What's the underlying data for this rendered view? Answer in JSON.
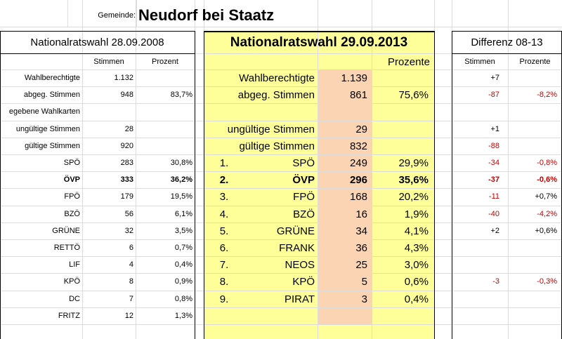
{
  "header": {
    "gemeinde_label": "Gemeinde:",
    "gemeinde_name": "Neudorf bei Staatz"
  },
  "left": {
    "title": "Nationalratswahl 28.09.2008",
    "col_stimmen": "Stimmen",
    "col_prozent": "Prozent",
    "rows": [
      {
        "label": "Wahlberechtigte",
        "stimmen": "1.132",
        "prozent": ""
      },
      {
        "label": "abgeg. Stimmen",
        "stimmen": "948",
        "prozent": "83,7%"
      },
      {
        "label": "egebene Wahlkarten",
        "stimmen": "",
        "prozent": ""
      },
      {
        "label": "ungültige Stimmen",
        "stimmen": "28",
        "prozent": ""
      },
      {
        "label": "gültige Stimmen",
        "stimmen": "920",
        "prozent": ""
      },
      {
        "label": "SPÖ",
        "stimmen": "283",
        "prozent": "30,8%"
      },
      {
        "label": "ÖVP",
        "stimmen": "333",
        "prozent": "36,2%",
        "bold": true
      },
      {
        "label": "FPÖ",
        "stimmen": "179",
        "prozent": "19,5%"
      },
      {
        "label": "BZÖ",
        "stimmen": "56",
        "prozent": "6,1%"
      },
      {
        "label": "GRÜNE",
        "stimmen": "32",
        "prozent": "3,5%"
      },
      {
        "label": "RETTÖ",
        "stimmen": "6",
        "prozent": "0,7%"
      },
      {
        "label": "LIF",
        "stimmen": "4",
        "prozent": "0,4%"
      },
      {
        "label": "KPÖ",
        "stimmen": "8",
        "prozent": "0,9%"
      },
      {
        "label": "DC",
        "stimmen": "7",
        "prozent": "0,8%"
      },
      {
        "label": "FRITZ",
        "stimmen": "12",
        "prozent": "1,3%"
      }
    ]
  },
  "middle": {
    "title": "Nationalratswahl 29.09.2013",
    "col_prozente": "Prozente",
    "rows": [
      {
        "nr": "",
        "label": "Wahlberechtigte",
        "stimmen": "1.139",
        "prozent": ""
      },
      {
        "nr": "",
        "label": "abgeg. Stimmen",
        "stimmen": "861",
        "prozent": "75,6%"
      },
      {
        "nr": "",
        "label": "",
        "stimmen": "",
        "prozent": ""
      },
      {
        "nr": "",
        "label": "ungültige Stimmen",
        "stimmen": "29",
        "prozent": ""
      },
      {
        "nr": "",
        "label": "gültige Stimmen",
        "stimmen": "832",
        "prozent": ""
      },
      {
        "nr": "1.",
        "label": "SPÖ",
        "stimmen": "249",
        "prozent": "29,9%"
      },
      {
        "nr": "2.",
        "label": "ÖVP",
        "stimmen": "296",
        "prozent": "35,6%",
        "bold": true
      },
      {
        "nr": "3.",
        "label": "FPÖ",
        "stimmen": "168",
        "prozent": "20,2%"
      },
      {
        "nr": "4.",
        "label": "BZÖ",
        "stimmen": "16",
        "prozent": "1,9%"
      },
      {
        "nr": "5.",
        "label": "GRÜNE",
        "stimmen": "34",
        "prozent": "4,1%"
      },
      {
        "nr": "6.",
        "label": "FRANK",
        "stimmen": "36",
        "prozent": "4,3%"
      },
      {
        "nr": "7.",
        "label": "NEOS",
        "stimmen": "25",
        "prozent": "3,0%"
      },
      {
        "nr": "8.",
        "label": "KPÖ",
        "stimmen": "5",
        "prozent": "0,6%"
      },
      {
        "nr": "9.",
        "label": "PIRAT",
        "stimmen": "3",
        "prozent": "0,4%"
      },
      {
        "nr": "",
        "label": "",
        "stimmen": "",
        "prozent": ""
      }
    ]
  },
  "right": {
    "title": "Differenz 08-13",
    "col_stimmen": "Stimmen",
    "col_prozente": "Prozente",
    "rows": [
      {
        "stimmen": "+7",
        "prozent": "",
        "s_red": false,
        "p_red": false
      },
      {
        "stimmen": "-87",
        "prozent": "-8,2%",
        "s_red": true,
        "p_red": true
      },
      {
        "stimmen": "",
        "prozent": ""
      },
      {
        "stimmen": "+1",
        "prozent": "",
        "s_red": false,
        "p_red": false
      },
      {
        "stimmen": "-88",
        "prozent": "",
        "s_red": true,
        "p_red": false
      },
      {
        "stimmen": "-34",
        "prozent": "-0,8%",
        "s_red": true,
        "p_red": true
      },
      {
        "stimmen": "-37",
        "prozent": "-0,6%",
        "s_red": true,
        "p_red": true,
        "bold": true
      },
      {
        "stimmen": "-11",
        "prozent": "+0,7%",
        "s_red": true,
        "p_red": false
      },
      {
        "stimmen": "-40",
        "prozent": "-4,2%",
        "s_red": true,
        "p_red": true
      },
      {
        "stimmen": "+2",
        "prozent": "+0,6%",
        "s_red": false,
        "p_red": false
      },
      {
        "stimmen": "",
        "prozent": ""
      },
      {
        "stimmen": "",
        "prozent": ""
      },
      {
        "stimmen": "-3",
        "prozent": "-0,3%",
        "s_red": true,
        "p_red": true
      },
      {
        "stimmen": "",
        "prozent": ""
      },
      {
        "stimmen": "",
        "prozent": ""
      }
    ]
  },
  "colors": {
    "yellow": "#ffff99",
    "salmon": "#fbd4b4",
    "red_text": "#c00000",
    "grid": "#dcdcdc",
    "border": "#000000"
  }
}
